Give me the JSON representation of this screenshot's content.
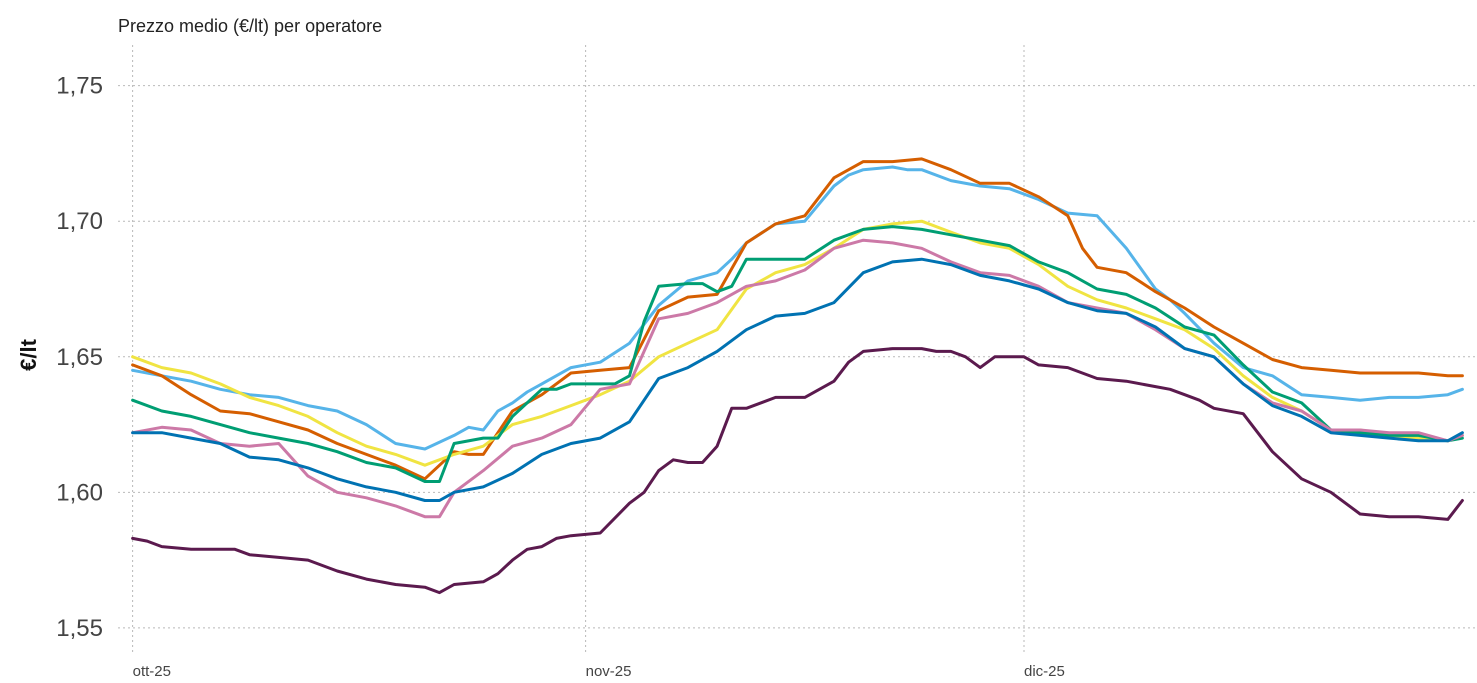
{
  "chart_data": {
    "type": "line",
    "title": "Prezzo medio (€/lt) per operatore",
    "xlabel": "",
    "ylabel": "€/lt",
    "ylim": [
      1.54,
      1.765
    ],
    "y_ticks": [
      1.55,
      1.6,
      1.65,
      1.7,
      1.75
    ],
    "y_tick_labels": [
      "1,55",
      "1,60",
      "1,65",
      "1,70",
      "1,75"
    ],
    "x_ticks": [
      0,
      31,
      61
    ],
    "x_tick_labels": [
      "ott-25",
      "nov-25",
      "dic-25"
    ],
    "xlim": [
      -1,
      92
    ],
    "grid": true,
    "legend": "none",
    "series": [
      {
        "color": "#56B4E9",
        "x": [
          0,
          2,
          4,
          6,
          8,
          10,
          12,
          14,
          16,
          18,
          20,
          22,
          23,
          24,
          25,
          26,
          27,
          28,
          30,
          32,
          34,
          36,
          38,
          40,
          41,
          42,
          44,
          46,
          48,
          49,
          50,
          52,
          53,
          54,
          56,
          58,
          60,
          62,
          64,
          66,
          68,
          70,
          71,
          72,
          74,
          76,
          78,
          80,
          82,
          84,
          86,
          88,
          90,
          91
        ],
        "y": [
          1.645,
          1.643,
          1.641,
          1.638,
          1.636,
          1.635,
          1.632,
          1.63,
          1.625,
          1.618,
          1.616,
          1.621,
          1.624,
          1.623,
          1.63,
          1.633,
          1.637,
          1.64,
          1.646,
          1.648,
          1.655,
          1.669,
          1.678,
          1.681,
          1.686,
          1.692,
          1.699,
          1.7,
          1.713,
          1.717,
          1.719,
          1.72,
          1.719,
          1.719,
          1.715,
          1.713,
          1.712,
          1.708,
          1.703,
          1.702,
          1.69,
          1.675,
          1.671,
          1.666,
          1.655,
          1.646,
          1.643,
          1.636,
          1.635,
          1.634,
          1.635,
          1.635,
          1.636,
          1.638
        ]
      },
      {
        "color": "#D55E00",
        "x": [
          0,
          2,
          4,
          6,
          8,
          10,
          12,
          14,
          16,
          18,
          20,
          22,
          23,
          24,
          26,
          28,
          30,
          32,
          34,
          36,
          38,
          40,
          42,
          44,
          46,
          47,
          48,
          50,
          52,
          54,
          56,
          58,
          60,
          62,
          64,
          65,
          66,
          68,
          70,
          72,
          74,
          76,
          78,
          80,
          82,
          84,
          86,
          88,
          90,
          91
        ],
        "y": [
          1.647,
          1.643,
          1.636,
          1.63,
          1.629,
          1.626,
          1.623,
          1.618,
          1.614,
          1.61,
          1.605,
          1.615,
          1.614,
          1.614,
          1.63,
          1.636,
          1.644,
          1.645,
          1.646,
          1.667,
          1.672,
          1.673,
          1.692,
          1.699,
          1.702,
          1.709,
          1.716,
          1.722,
          1.722,
          1.723,
          1.719,
          1.714,
          1.714,
          1.709,
          1.702,
          1.69,
          1.683,
          1.681,
          1.674,
          1.668,
          1.661,
          1.655,
          1.649,
          1.646,
          1.645,
          1.644,
          1.644,
          1.644,
          1.643,
          1.643
        ]
      },
      {
        "color": "#F0E442",
        "x": [
          0,
          2,
          4,
          6,
          8,
          10,
          12,
          14,
          16,
          18,
          20,
          22,
          24,
          26,
          28,
          30,
          32,
          34,
          36,
          38,
          40,
          42,
          44,
          46,
          48,
          50,
          52,
          54,
          56,
          58,
          60,
          62,
          64,
          66,
          68,
          70,
          72,
          74,
          76,
          78,
          80,
          82,
          84,
          86,
          88,
          90,
          91
        ],
        "y": [
          1.65,
          1.646,
          1.644,
          1.64,
          1.635,
          1.632,
          1.628,
          1.622,
          1.617,
          1.614,
          1.61,
          1.614,
          1.617,
          1.625,
          1.628,
          1.632,
          1.636,
          1.641,
          1.65,
          1.655,
          1.66,
          1.675,
          1.681,
          1.684,
          1.69,
          1.697,
          1.699,
          1.7,
          1.696,
          1.692,
          1.69,
          1.684,
          1.676,
          1.671,
          1.668,
          1.664,
          1.66,
          1.653,
          1.643,
          1.635,
          1.63,
          1.623,
          1.623,
          1.621,
          1.62,
          1.619,
          1.621
        ]
      },
      {
        "color": "#009E73",
        "x": [
          0,
          2,
          4,
          6,
          8,
          10,
          12,
          14,
          16,
          18,
          20,
          21,
          22,
          24,
          25,
          26,
          28,
          29,
          30,
          32,
          33,
          34,
          35,
          36,
          38,
          39,
          40,
          41,
          42,
          44,
          46,
          48,
          50,
          52,
          54,
          56,
          58,
          60,
          62,
          64,
          66,
          68,
          70,
          72,
          74,
          76,
          78,
          79,
          80,
          82,
          84,
          86,
          88,
          90,
          91
        ],
        "y": [
          1.634,
          1.63,
          1.628,
          1.625,
          1.622,
          1.62,
          1.618,
          1.615,
          1.611,
          1.609,
          1.604,
          1.604,
          1.618,
          1.62,
          1.62,
          1.628,
          1.638,
          1.638,
          1.64,
          1.64,
          1.64,
          1.643,
          1.663,
          1.676,
          1.677,
          1.677,
          1.674,
          1.676,
          1.686,
          1.686,
          1.686,
          1.693,
          1.697,
          1.698,
          1.697,
          1.695,
          1.693,
          1.691,
          1.685,
          1.681,
          1.675,
          1.673,
          1.668,
          1.661,
          1.658,
          1.647,
          1.637,
          1.635,
          1.633,
          1.623,
          1.622,
          1.621,
          1.621,
          1.619,
          1.62
        ]
      },
      {
        "color": "#CC79A7",
        "x": [
          0,
          2,
          4,
          6,
          8,
          10,
          12,
          14,
          16,
          18,
          20,
          21,
          22,
          24,
          26,
          28,
          30,
          32,
          34,
          36,
          38,
          40,
          42,
          44,
          46,
          48,
          50,
          52,
          54,
          56,
          58,
          60,
          62,
          64,
          66,
          68,
          70,
          72,
          74,
          76,
          78,
          80,
          82,
          84,
          86,
          88,
          90,
          91
        ],
        "y": [
          1.622,
          1.624,
          1.623,
          1.618,
          1.617,
          1.618,
          1.606,
          1.6,
          1.598,
          1.595,
          1.591,
          1.591,
          1.6,
          1.608,
          1.617,
          1.62,
          1.625,
          1.638,
          1.64,
          1.664,
          1.666,
          1.67,
          1.676,
          1.678,
          1.682,
          1.69,
          1.693,
          1.692,
          1.69,
          1.685,
          1.681,
          1.68,
          1.676,
          1.67,
          1.668,
          1.666,
          1.66,
          1.653,
          1.65,
          1.64,
          1.633,
          1.63,
          1.623,
          1.623,
          1.622,
          1.622,
          1.619,
          1.621
        ]
      },
      {
        "color": "#0072B2",
        "x": [
          0,
          2,
          4,
          6,
          8,
          10,
          12,
          14,
          16,
          18,
          20,
          21,
          22,
          24,
          26,
          28,
          30,
          32,
          34,
          36,
          38,
          40,
          42,
          44,
          46,
          48,
          50,
          52,
          54,
          56,
          58,
          60,
          62,
          64,
          66,
          68,
          70,
          72,
          74,
          76,
          78,
          80,
          82,
          84,
          86,
          88,
          90,
          91
        ],
        "y": [
          1.622,
          1.622,
          1.62,
          1.618,
          1.613,
          1.612,
          1.609,
          1.605,
          1.602,
          1.6,
          1.597,
          1.597,
          1.6,
          1.602,
          1.607,
          1.614,
          1.618,
          1.62,
          1.626,
          1.642,
          1.646,
          1.652,
          1.66,
          1.665,
          1.666,
          1.67,
          1.681,
          1.685,
          1.686,
          1.684,
          1.68,
          1.678,
          1.675,
          1.67,
          1.667,
          1.666,
          1.661,
          1.653,
          1.65,
          1.64,
          1.632,
          1.628,
          1.622,
          1.621,
          1.62,
          1.619,
          1.619,
          1.622
        ]
      },
      {
        "color": "#5B1A4E",
        "x": [
          0,
          1,
          2,
          4,
          6,
          7,
          8,
          10,
          12,
          14,
          16,
          18,
          20,
          21,
          22,
          24,
          25,
          26,
          27,
          28,
          29,
          30,
          32,
          34,
          35,
          36,
          37,
          38,
          39,
          40,
          41,
          42,
          44,
          46,
          48,
          49,
          50,
          52,
          54,
          55,
          56,
          57,
          58,
          59,
          60,
          61,
          62,
          64,
          66,
          68,
          70,
          71,
          72,
          73,
          74,
          76,
          78,
          80,
          82,
          84,
          86,
          88,
          90,
          91
        ],
        "y": [
          1.583,
          1.582,
          1.58,
          1.579,
          1.579,
          1.579,
          1.577,
          1.576,
          1.575,
          1.571,
          1.568,
          1.566,
          1.565,
          1.563,
          1.566,
          1.567,
          1.57,
          1.575,
          1.579,
          1.58,
          1.583,
          1.584,
          1.585,
          1.596,
          1.6,
          1.608,
          1.612,
          1.611,
          1.611,
          1.617,
          1.631,
          1.631,
          1.635,
          1.635,
          1.641,
          1.648,
          1.652,
          1.653,
          1.653,
          1.652,
          1.652,
          1.65,
          1.646,
          1.65,
          1.65,
          1.65,
          1.647,
          1.646,
          1.642,
          1.641,
          1.639,
          1.638,
          1.636,
          1.634,
          1.631,
          1.629,
          1.615,
          1.605,
          1.6,
          1.592,
          1.591,
          1.591,
          1.59,
          1.597
        ]
      }
    ]
  }
}
